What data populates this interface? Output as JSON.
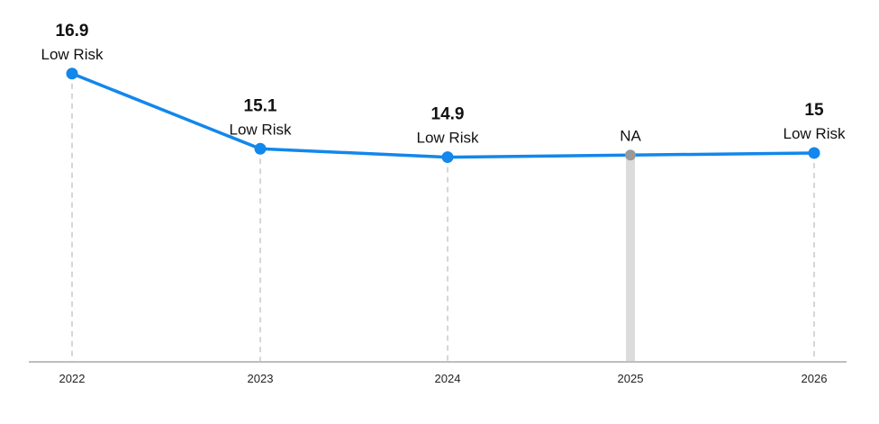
{
  "chart_data": {
    "type": "line",
    "categories": [
      "2022",
      "2023",
      "2024",
      "2025",
      "2026"
    ],
    "values": [
      16.9,
      15.1,
      14.9,
      null,
      15
    ],
    "score_labels": [
      "16.9",
      "15.1",
      "14.9",
      "",
      "15"
    ],
    "risk_labels": [
      "Low Risk",
      "Low Risk",
      "Low Risk",
      "NA",
      "Low Risk"
    ],
    "missing_value_label": "NA",
    "title": "",
    "xlabel": "",
    "ylabel": "",
    "ylim": [
      10,
      17.8
    ],
    "grid": false,
    "legend": "none",
    "colors": {
      "line": "#1287EC",
      "point": "#1287EC",
      "missing_point": "#999999",
      "missing_bar": "#DCDCDC",
      "guide": "#C8C8C8",
      "axis": "#BEBEBE",
      "text": "#111111"
    }
  }
}
